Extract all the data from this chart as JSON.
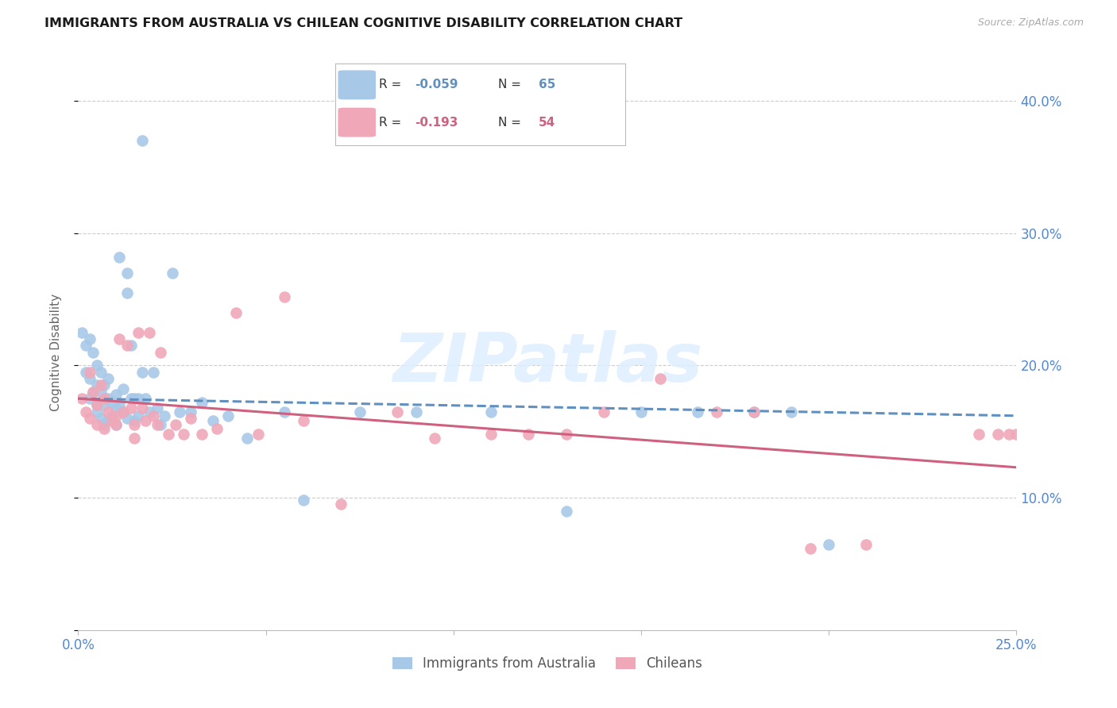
{
  "title": "IMMIGRANTS FROM AUSTRALIA VS CHILEAN COGNITIVE DISABILITY CORRELATION CHART",
  "source": "Source: ZipAtlas.com",
  "ylabel_label": "Cognitive Disability",
  "xlim": [
    0.0,
    0.25
  ],
  "ylim": [
    0.0,
    0.42
  ],
  "x_ticks": [
    0.0,
    0.05,
    0.1,
    0.15,
    0.2,
    0.25
  ],
  "x_tick_labels": [
    "0.0%",
    "",
    "",
    "",
    "",
    "25.0%"
  ],
  "y_ticks": [
    0.0,
    0.1,
    0.2,
    0.3,
    0.4
  ],
  "y_tick_labels_right": [
    "",
    "10.0%",
    "20.0%",
    "30.0%",
    "40.0%"
  ],
  "legend1_r": "-0.059",
  "legend1_n": "65",
  "legend2_r": "-0.193",
  "legend2_n": "54",
  "color_blue": "#a8c8e8",
  "color_pink": "#f0a8b8",
  "color_blue_line": "#6090c0",
  "color_pink_line": "#d06080",
  "color_axis_text": "#5588cc",
  "watermark_text": "ZIPatlas",
  "watermark_color": "#ddeeff",
  "blue_scatter_x": [
    0.001,
    0.002,
    0.002,
    0.003,
    0.003,
    0.003,
    0.004,
    0.004,
    0.005,
    0.005,
    0.005,
    0.005,
    0.006,
    0.006,
    0.006,
    0.007,
    0.007,
    0.007,
    0.008,
    0.008,
    0.008,
    0.009,
    0.009,
    0.01,
    0.01,
    0.01,
    0.011,
    0.011,
    0.012,
    0.012,
    0.013,
    0.013,
    0.013,
    0.014,
    0.014,
    0.015,
    0.015,
    0.016,
    0.016,
    0.017,
    0.017,
    0.018,
    0.019,
    0.02,
    0.021,
    0.022,
    0.023,
    0.025,
    0.027,
    0.03,
    0.033,
    0.036,
    0.04,
    0.045,
    0.055,
    0.06,
    0.075,
    0.09,
    0.11,
    0.13,
    0.15,
    0.165,
    0.18,
    0.19,
    0.2
  ],
  "blue_scatter_y": [
    0.225,
    0.215,
    0.195,
    0.22,
    0.19,
    0.175,
    0.21,
    0.18,
    0.2,
    0.185,
    0.17,
    0.165,
    0.195,
    0.18,
    0.16,
    0.185,
    0.17,
    0.155,
    0.19,
    0.175,
    0.158,
    0.172,
    0.162,
    0.178,
    0.168,
    0.155,
    0.282,
    0.17,
    0.165,
    0.182,
    0.27,
    0.255,
    0.16,
    0.215,
    0.175,
    0.175,
    0.158,
    0.175,
    0.162,
    0.37,
    0.195,
    0.175,
    0.165,
    0.195,
    0.168,
    0.155,
    0.162,
    0.27,
    0.165,
    0.165,
    0.172,
    0.158,
    0.162,
    0.145,
    0.165,
    0.098,
    0.165,
    0.165,
    0.165,
    0.09,
    0.165,
    0.165,
    0.165,
    0.165,
    0.065
  ],
  "pink_scatter_x": [
    0.001,
    0.002,
    0.003,
    0.003,
    0.004,
    0.005,
    0.005,
    0.006,
    0.007,
    0.007,
    0.008,
    0.009,
    0.01,
    0.01,
    0.011,
    0.012,
    0.013,
    0.014,
    0.015,
    0.015,
    0.016,
    0.017,
    0.018,
    0.019,
    0.02,
    0.021,
    0.022,
    0.024,
    0.026,
    0.028,
    0.03,
    0.033,
    0.037,
    0.042,
    0.048,
    0.055,
    0.06,
    0.07,
    0.085,
    0.095,
    0.11,
    0.12,
    0.13,
    0.14,
    0.155,
    0.17,
    0.18,
    0.195,
    0.21,
    0.24,
    0.245,
    0.248,
    0.25,
    0.252
  ],
  "pink_scatter_y": [
    0.175,
    0.165,
    0.195,
    0.16,
    0.18,
    0.17,
    0.155,
    0.185,
    0.175,
    0.152,
    0.165,
    0.158,
    0.162,
    0.155,
    0.22,
    0.165,
    0.215,
    0.168,
    0.155,
    0.145,
    0.225,
    0.168,
    0.158,
    0.225,
    0.162,
    0.155,
    0.21,
    0.148,
    0.155,
    0.148,
    0.16,
    0.148,
    0.152,
    0.24,
    0.148,
    0.252,
    0.158,
    0.095,
    0.165,
    0.145,
    0.148,
    0.148,
    0.148,
    0.165,
    0.19,
    0.165,
    0.165,
    0.062,
    0.065,
    0.148,
    0.148,
    0.148,
    0.148,
    0.148
  ],
  "blue_line_x0": 0.0,
  "blue_line_x1": 0.25,
  "blue_line_y0": 0.175,
  "blue_line_y1": 0.162,
  "pink_line_x0": 0.0,
  "pink_line_x1": 0.25,
  "pink_line_y0": 0.175,
  "pink_line_y1": 0.123
}
